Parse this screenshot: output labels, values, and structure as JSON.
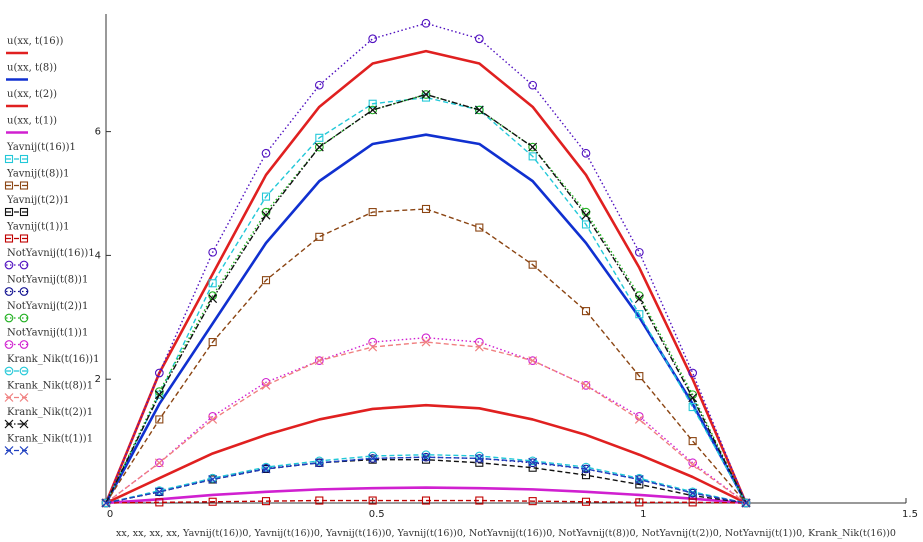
{
  "chart_data": {
    "type": "line",
    "xlabel": "xx, xx, xx, xx, Yavnij(t(16))0, Yavnij(t(16))0, Yavnij(t(16))0, Yavnij(t(16))0, NotYavnij(t(16))0, NotYavnij(t(8))0, NotYavnij(t(2))0, NotYavnij(t(1))0, Krank_Nik(t(16))0",
    "ylabel": "",
    "xlim": [
      0,
      1.5
    ],
    "ylim": [
      0,
      7.9
    ],
    "x_ticks": [
      0,
      0.5,
      1,
      1.5
    ],
    "y_ticks": [
      2,
      4,
      6
    ],
    "x_tick_labels": [
      "0",
      "0.5",
      "1",
      "1.5"
    ],
    "y_tick_labels": [
      "2",
      "4",
      "6"
    ],
    "grid": false,
    "legend_position": "left",
    "x": [
      0,
      0.1,
      0.2,
      0.3,
      0.4,
      0.5,
      0.6,
      0.7,
      0.8,
      0.9,
      1.0,
      1.1,
      1.2
    ],
    "series": [
      {
        "name": "u(xx, t(16))",
        "color": "#e02020",
        "style": "solid",
        "marker": "none",
        "width": 2.6,
        "values": [
          0,
          2.1,
          3.7,
          5.3,
          6.4,
          7.1,
          7.3,
          7.1,
          6.4,
          5.3,
          3.8,
          2.0,
          0
        ]
      },
      {
        "name": "u(xx, t(8))",
        "color": "#1030d0",
        "style": "solid",
        "marker": "none",
        "width": 2.6,
        "values": [
          0,
          1.6,
          2.9,
          4.2,
          5.2,
          5.8,
          5.95,
          5.8,
          5.2,
          4.2,
          3.0,
          1.6,
          0
        ]
      },
      {
        "name": "u(xx, t(2))",
        "color": "#e02020",
        "style": "solid",
        "marker": "none",
        "width": 2.6,
        "values": [
          0,
          0.4,
          0.8,
          1.1,
          1.35,
          1.52,
          1.58,
          1.53,
          1.35,
          1.1,
          0.78,
          0.42,
          0
        ]
      },
      {
        "name": "u(xx, t(1))",
        "color": "#d020d0",
        "style": "solid",
        "marker": "none",
        "width": 2.6,
        "values": [
          0,
          0.06,
          0.13,
          0.18,
          0.22,
          0.24,
          0.25,
          0.24,
          0.22,
          0.18,
          0.13,
          0.07,
          0
        ]
      },
      {
        "name": "Yavnij(t(16))1",
        "color": "#22c8d8",
        "style": "dash",
        "marker": "square",
        "width": 1.4,
        "values": [
          0,
          1.75,
          3.55,
          4.95,
          5.9,
          6.45,
          6.55,
          6.35,
          5.6,
          4.5,
          3.05,
          1.55,
          0
        ]
      },
      {
        "name": "Yavnij(t(8))1",
        "color": "#8b4513",
        "style": "dash",
        "marker": "square",
        "width": 1.4,
        "values": [
          0,
          1.35,
          2.6,
          3.6,
          4.3,
          4.7,
          4.75,
          4.45,
          3.85,
          3.1,
          2.05,
          1.0,
          0
        ]
      },
      {
        "name": "Yavnij(t(2))1",
        "color": "#111111",
        "style": "dash",
        "marker": "square",
        "width": 1.4,
        "values": [
          0,
          0.18,
          0.38,
          0.55,
          0.65,
          0.7,
          0.7,
          0.65,
          0.57,
          0.45,
          0.3,
          0.12,
          0
        ]
      },
      {
        "name": "Yavnij(t(1))1",
        "color": "#c00000",
        "style": "dash",
        "marker": "square",
        "width": 1.4,
        "values": [
          0,
          0.01,
          0.02,
          0.03,
          0.04,
          0.04,
          0.04,
          0.04,
          0.03,
          0.02,
          0.01,
          0.01,
          0
        ]
      },
      {
        "name": "NotYavnij(t(16))1",
        "color": "#5010c0",
        "style": "dot",
        "marker": "circle",
        "width": 1.4,
        "values": [
          0,
          2.1,
          4.05,
          5.65,
          6.75,
          7.5,
          7.75,
          7.5,
          6.75,
          5.65,
          4.05,
          2.1,
          0
        ]
      },
      {
        "name": "NotYavnij(t(8))1",
        "color": "#101090",
        "style": "dot",
        "marker": "circle",
        "width": 1.4,
        "values": [
          0,
          0.18,
          0.4,
          0.56,
          0.65,
          0.72,
          0.74,
          0.72,
          0.65,
          0.55,
          0.38,
          0.16,
          0
        ]
      },
      {
        "name": "NotYavnij(t(2))1",
        "color": "#20b020",
        "style": "dot",
        "marker": "circle",
        "width": 1.4,
        "values": [
          0,
          1.8,
          3.35,
          4.7,
          5.75,
          6.35,
          6.6,
          6.35,
          5.75,
          4.7,
          3.35,
          1.75,
          0
        ]
      },
      {
        "name": "NotYavnij(t(1))1",
        "color": "#d020d0",
        "style": "dot",
        "marker": "circle",
        "width": 1.4,
        "values": [
          0,
          0.65,
          1.4,
          1.95,
          2.3,
          2.6,
          2.67,
          2.6,
          2.3,
          1.9,
          1.4,
          0.65,
          0
        ]
      },
      {
        "name": "Krank_Nik(t(16))1",
        "color": "#22c8d8",
        "style": "dash",
        "marker": "circle",
        "width": 1.4,
        "values": [
          0,
          0.2,
          0.4,
          0.58,
          0.68,
          0.76,
          0.78,
          0.76,
          0.68,
          0.58,
          0.4,
          0.18,
          0
        ]
      },
      {
        "name": "Krank_Nik(t(8))1",
        "color": "#f08080",
        "style": "dash",
        "marker": "x",
        "width": 1.4,
        "values": [
          0,
          0.65,
          1.35,
          1.9,
          2.3,
          2.52,
          2.6,
          2.52,
          2.3,
          1.9,
          1.35,
          0.62,
          0
        ]
      },
      {
        "name": "Krank_Nik(t(2))1",
        "color": "#111111",
        "style": "dashdot",
        "marker": "x",
        "width": 1.4,
        "values": [
          0,
          1.75,
          3.3,
          4.65,
          5.75,
          6.35,
          6.6,
          6.35,
          5.75,
          4.65,
          3.3,
          1.7,
          0
        ]
      },
      {
        "name": "Krank_Nik(t(1))1",
        "color": "#2040c0",
        "style": "dash",
        "marker": "x",
        "width": 1.4,
        "values": [
          0,
          0.18,
          0.38,
          0.55,
          0.65,
          0.72,
          0.74,
          0.72,
          0.66,
          0.55,
          0.38,
          0.16,
          0
        ]
      }
    ]
  }
}
